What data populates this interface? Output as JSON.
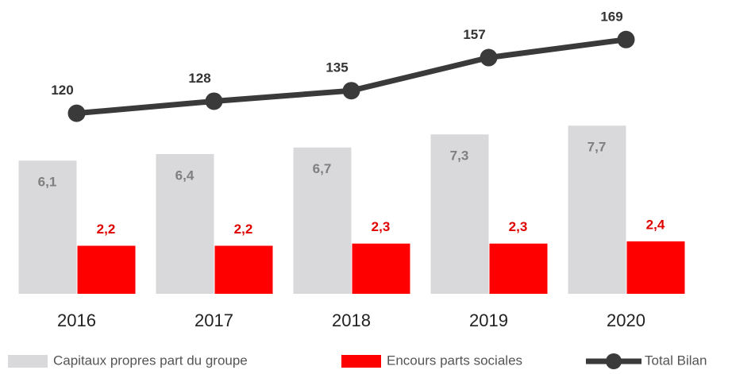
{
  "chart_data": {
    "type": "bar+line",
    "categories": [
      "2016",
      "2017",
      "2018",
      "2019",
      "2020"
    ],
    "series": [
      {
        "name": "Capitaux propres part du groupe",
        "color": "#d9d9db",
        "label_color": "#7f7f7f",
        "type": "bar",
        "values": [
          6.1,
          6.4,
          6.7,
          7.3,
          7.7
        ],
        "value_labels": [
          "6,1",
          "6,4",
          "6,7",
          "7,3",
          "7,7"
        ]
      },
      {
        "name": "Encours parts sociales",
        "color": "#ff0000",
        "label_color": "#e00000",
        "type": "bar",
        "values": [
          2.2,
          2.2,
          2.3,
          2.3,
          2.4
        ],
        "value_labels": [
          "2,2",
          "2,2",
          "2,3",
          "2,3",
          "2,4"
        ]
      },
      {
        "name": "Total Bilan",
        "color": "#3a3a3a",
        "label_color": "#333333",
        "type": "line",
        "axis": "y2",
        "values": [
          120,
          128,
          135,
          157,
          169
        ]
      }
    ],
    "ylim": [
      0,
      8
    ],
    "y2lim": [
      0,
      190
    ],
    "legend": "bottom"
  }
}
